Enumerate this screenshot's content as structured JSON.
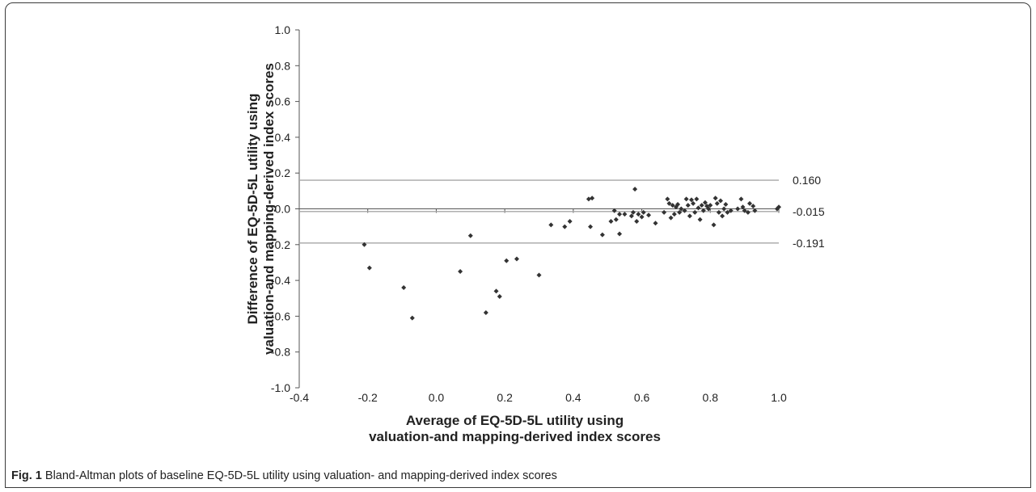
{
  "caption": {
    "label": "Fig. 1",
    "text": "Bland-Altman plots of baseline EQ-5D-5L utility using valuation- and mapping-derived index scores"
  },
  "chart_data": {
    "type": "scatter",
    "title": "",
    "xlabel_lines": [
      "Average of EQ-5D-5L utility using",
      "valuation-and mapping-derived index scores"
    ],
    "ylabel_lines": [
      "Difference of EQ-5D-5L utility using",
      "valuation-and mapping-derived index scores"
    ],
    "xlim": [
      -0.4,
      1.0
    ],
    "ylim": [
      -1.0,
      1.0
    ],
    "x_ticks": [
      -0.4,
      -0.2,
      0.0,
      0.2,
      0.4,
      0.6,
      0.8,
      1.0
    ],
    "y_ticks": [
      -1.0,
      -0.8,
      -0.6,
      -0.4,
      -0.2,
      0.0,
      0.2,
      0.4,
      0.6,
      0.8,
      1.0
    ],
    "x_tick_labels": [
      "-0.4",
      "-0.2",
      "0.0",
      "0.2",
      "0.4",
      "0.6",
      "0.8",
      "1.0"
    ],
    "y_tick_labels": [
      "-1.0",
      "-0.8",
      "-0.6",
      "-0.4",
      "-0.2",
      "0.0",
      "0.2",
      "0.4",
      "0.6",
      "0.8",
      "1.0"
    ],
    "grid": false,
    "reference_lines": [
      {
        "y": 0.16,
        "label": "0.160"
      },
      {
        "y": -0.015,
        "label": "-0.015"
      },
      {
        "y": -0.191,
        "label": "-0.191"
      }
    ],
    "marker_color": "#333333",
    "line_color": "#a6a6a6",
    "points": [
      [
        -0.21,
        -0.2
      ],
      [
        -0.195,
        -0.33
      ],
      [
        -0.095,
        -0.44
      ],
      [
        -0.07,
        -0.61
      ],
      [
        0.07,
        -0.35
      ],
      [
        0.1,
        -0.15
      ],
      [
        0.145,
        -0.58
      ],
      [
        0.175,
        -0.46
      ],
      [
        0.185,
        -0.49
      ],
      [
        0.205,
        -0.29
      ],
      [
        0.235,
        -0.28
      ],
      [
        0.3,
        -0.37
      ],
      [
        0.335,
        -0.09
      ],
      [
        0.375,
        -0.1
      ],
      [
        0.39,
        -0.07
      ],
      [
        0.445,
        0.055
      ],
      [
        0.455,
        0.06
      ],
      [
        0.45,
        -0.1
      ],
      [
        0.485,
        -0.145
      ],
      [
        0.51,
        -0.07
      ],
      [
        0.52,
        -0.01
      ],
      [
        0.525,
        -0.06
      ],
      [
        0.535,
        -0.03
      ],
      [
        0.535,
        -0.14
      ],
      [
        0.55,
        -0.03
      ],
      [
        0.57,
        -0.04
      ],
      [
        0.575,
        -0.02
      ],
      [
        0.58,
        0.11
      ],
      [
        0.585,
        -0.07
      ],
      [
        0.59,
        -0.03
      ],
      [
        0.6,
        -0.045
      ],
      [
        0.605,
        -0.02
      ],
      [
        0.62,
        -0.035
      ],
      [
        0.64,
        -0.08
      ],
      [
        0.665,
        -0.02
      ],
      [
        0.675,
        0.055
      ],
      [
        0.68,
        0.03
      ],
      [
        0.685,
        -0.05
      ],
      [
        0.69,
        0.02
      ],
      [
        0.695,
        -0.03
      ],
      [
        0.7,
        0.01
      ],
      [
        0.705,
        0.025
      ],
      [
        0.71,
        -0.02
      ],
      [
        0.715,
        0.0
      ],
      [
        0.725,
        -0.01
      ],
      [
        0.73,
        0.055
      ],
      [
        0.735,
        0.02
      ],
      [
        0.74,
        -0.04
      ],
      [
        0.745,
        0.05
      ],
      [
        0.75,
        0.03
      ],
      [
        0.755,
        -0.02
      ],
      [
        0.76,
        0.055
      ],
      [
        0.765,
        0.005
      ],
      [
        0.77,
        -0.06
      ],
      [
        0.775,
        0.02
      ],
      [
        0.78,
        -0.01
      ],
      [
        0.785,
        0.035
      ],
      [
        0.79,
        0.015
      ],
      [
        0.795,
        0.0
      ],
      [
        0.8,
        0.02
      ],
      [
        0.81,
        -0.09
      ],
      [
        0.815,
        0.06
      ],
      [
        0.82,
        0.03
      ],
      [
        0.825,
        -0.02
      ],
      [
        0.83,
        0.045
      ],
      [
        0.835,
        -0.04
      ],
      [
        0.84,
        0.0
      ],
      [
        0.845,
        0.025
      ],
      [
        0.85,
        -0.02
      ],
      [
        0.86,
        -0.01
      ],
      [
        0.88,
        0.0
      ],
      [
        0.89,
        0.055
      ],
      [
        0.895,
        0.01
      ],
      [
        0.9,
        -0.01
      ],
      [
        0.91,
        -0.02
      ],
      [
        0.915,
        0.03
      ],
      [
        0.925,
        0.015
      ],
      [
        0.93,
        -0.01
      ],
      [
        0.995,
        0.0
      ],
      [
        1.0,
        0.01
      ]
    ]
  }
}
